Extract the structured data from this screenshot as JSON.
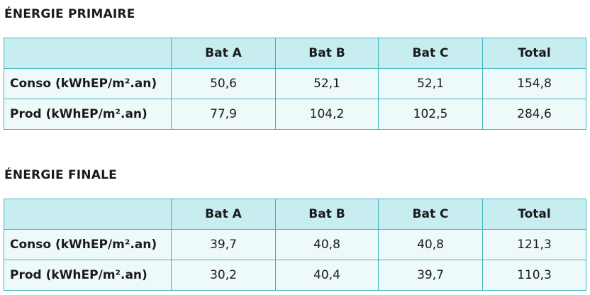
{
  "sections": [
    {
      "title": "ÉNERGIE PRIMAIRE",
      "table": {
        "header": [
          "Bat A",
          "Bat B",
          "Bat C",
          "Total"
        ],
        "rows": [
          [
            "Conso (kWhEP/m².an)",
            "50,6",
            "52,1",
            "52,1",
            "154,8"
          ],
          [
            "Prod (kWhEP/m².an)",
            "77,9",
            "104,2",
            "102,5",
            "284,6"
          ]
        ]
      }
    },
    {
      "title": "ÉNERGIE FINALE",
      "table": {
        "header": [
          "Bat A",
          "Bat B",
          "Bat C",
          "Total"
        ],
        "rows": [
          [
            "Conso (kWhEP/m².an)",
            "39,7",
            "40,8",
            "40,8",
            "121,3"
          ],
          [
            "Prod (kWhEP/m².an)",
            "30,2",
            "40,4",
            "39,7",
            "110,3"
          ]
        ]
      }
    }
  ]
}
